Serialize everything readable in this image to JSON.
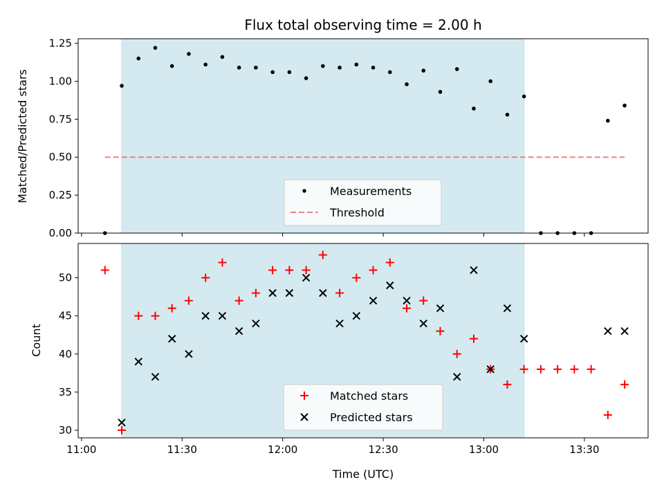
{
  "chart_data": [
    {
      "type": "scatter",
      "title": "Flux total observing time = 2.00 h",
      "xlabel": "",
      "ylabel": "Matched/Predicted stars",
      "ylim": [
        0,
        1.28
      ],
      "yticks": [
        "0.00",
        "0.25",
        "0.50",
        "0.75",
        "1.00",
        "1.25"
      ],
      "xlim": [
        "10:59",
        "13:49"
      ],
      "highlight_span": [
        "11:12",
        "13:12"
      ],
      "highlight_color": "#d4eaf0",
      "series": [
        {
          "name": "Measurements",
          "color": "#000000",
          "points": [
            [
              "11:07",
              0.0
            ],
            [
              "11:12",
              0.97
            ],
            [
              "11:17",
              1.15
            ],
            [
              "11:22",
              1.22
            ],
            [
              "11:27",
              1.1
            ],
            [
              "11:32",
              1.18
            ],
            [
              "11:37",
              1.11
            ],
            [
              "11:42",
              1.16
            ],
            [
              "11:47",
              1.09
            ],
            [
              "11:52",
              1.09
            ],
            [
              "11:57",
              1.06
            ],
            [
              "12:02",
              1.06
            ],
            [
              "12:07",
              1.02
            ],
            [
              "12:12",
              1.1
            ],
            [
              "12:17",
              1.09
            ],
            [
              "12:22",
              1.11
            ],
            [
              "12:27",
              1.09
            ],
            [
              "12:32",
              1.06
            ],
            [
              "12:37",
              0.98
            ],
            [
              "12:42",
              1.07
            ],
            [
              "12:47",
              0.93
            ],
            [
              "12:52",
              1.08
            ],
            [
              "12:57",
              0.82
            ],
            [
              "13:02",
              1.0
            ],
            [
              "13:07",
              0.78
            ],
            [
              "13:12",
              0.9
            ],
            [
              "13:17",
              0.0
            ],
            [
              "13:22",
              0.0
            ],
            [
              "13:27",
              0.0
            ],
            [
              "13:32",
              0.0
            ],
            [
              "13:37",
              0.74
            ],
            [
              "13:42",
              0.84
            ]
          ]
        }
      ],
      "threshold": {
        "name": "Threshold",
        "value": 0.5,
        "from": "11:07",
        "to": "13:42",
        "color": "#f08080"
      },
      "legend": "lower-center"
    },
    {
      "type": "scatter",
      "title": "",
      "xlabel": "Time (UTC)",
      "ylabel": "Count",
      "ylim": [
        29,
        54.5
      ],
      "yticks": [
        "30",
        "35",
        "40",
        "45",
        "50"
      ],
      "xlim": [
        "10:59",
        "13:49"
      ],
      "xticks": [
        "11:00",
        "11:30",
        "12:00",
        "12:30",
        "13:00",
        "13:30"
      ],
      "highlight_span": [
        "11:12",
        "13:12"
      ],
      "series": [
        {
          "name": "Matched stars",
          "marker": "plus",
          "color": "#ff0000",
          "points": [
            [
              "11:07",
              51
            ],
            [
              "11:12",
              30
            ],
            [
              "11:17",
              45
            ],
            [
              "11:22",
              45
            ],
            [
              "11:27",
              46
            ],
            [
              "11:32",
              47
            ],
            [
              "11:37",
              50
            ],
            [
              "11:42",
              52
            ],
            [
              "11:47",
              47
            ],
            [
              "11:52",
              48
            ],
            [
              "11:57",
              51
            ],
            [
              "12:02",
              51
            ],
            [
              "12:07",
              51
            ],
            [
              "12:12",
              53
            ],
            [
              "12:17",
              48
            ],
            [
              "12:22",
              50
            ],
            [
              "12:27",
              51
            ],
            [
              "12:32",
              52
            ],
            [
              "12:37",
              46
            ],
            [
              "12:42",
              47
            ],
            [
              "12:47",
              43
            ],
            [
              "12:52",
              40
            ],
            [
              "12:57",
              42
            ],
            [
              "13:02",
              38
            ],
            [
              "13:07",
              36
            ],
            [
              "13:12",
              38
            ],
            [
              "13:17",
              38
            ],
            [
              "13:22",
              38
            ],
            [
              "13:27",
              38
            ],
            [
              "13:32",
              38
            ],
            [
              "13:37",
              32
            ],
            [
              "13:42",
              36
            ]
          ]
        },
        {
          "name": "Predicted stars",
          "marker": "x",
          "color": "#000000",
          "points": [
            [
              "11:12",
              31
            ],
            [
              "11:17",
              39
            ],
            [
              "11:22",
              37
            ],
            [
              "11:27",
              42
            ],
            [
              "11:32",
              40
            ],
            [
              "11:37",
              45
            ],
            [
              "11:42",
              45
            ],
            [
              "11:47",
              43
            ],
            [
              "11:52",
              44
            ],
            [
              "11:57",
              48
            ],
            [
              "12:02",
              48
            ],
            [
              "12:07",
              50
            ],
            [
              "12:12",
              48
            ],
            [
              "12:17",
              44
            ],
            [
              "12:22",
              45
            ],
            [
              "12:27",
              47
            ],
            [
              "12:32",
              49
            ],
            [
              "12:37",
              47
            ],
            [
              "12:42",
              44
            ],
            [
              "12:47",
              46
            ],
            [
              "12:52",
              37
            ],
            [
              "12:57",
              51
            ],
            [
              "13:02",
              38
            ],
            [
              "13:07",
              46
            ],
            [
              "13:12",
              42
            ],
            [
              "13:37",
              43
            ],
            [
              "13:42",
              43
            ]
          ]
        }
      ],
      "legend": "lower-center"
    }
  ]
}
